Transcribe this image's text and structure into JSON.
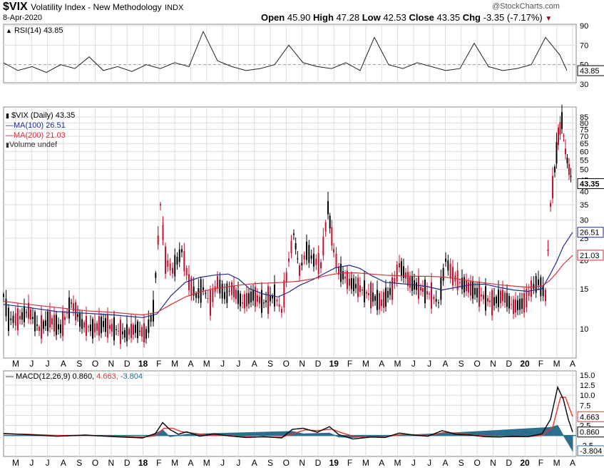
{
  "header": {
    "symbol": "$VIX",
    "name": "Volatility Index - New Methodology",
    "exchange": "INDX",
    "date": "8-Apr-2020",
    "watermark": "@StockCharts.com",
    "quote": {
      "open_label": "Open",
      "open": "45.90",
      "high_label": "High",
      "high": "47.28",
      "low_label": "Low",
      "low": "42.53",
      "close_label": "Close",
      "close": "43.35",
      "chg_label": "Chg",
      "chg": "-3.35 (-7.17%)"
    }
  },
  "legends": {
    "rsi": "RSI(14) 43.85",
    "price": "$VIX (Daily) 43.35",
    "ma100": "MA(100) 26.51",
    "ma200": "MA(200) 21.03",
    "volume": "Volume undef",
    "macd_prefix": "MACD(12,26,9) 0.860,",
    "macd_signal": " 4.663,",
    "macd_hist": " -3.804"
  },
  "colors": {
    "price": "#000000",
    "down": "#c8102e",
    "ma100": "#1e2b8c",
    "ma200": "#d62f3b",
    "macd_line": "#000000",
    "macd_signal": "#e8352c",
    "macd_hist": "#2a6f8e",
    "grid": "#dcdcdc",
    "accent": "#8b0a1e"
  },
  "chart_data": [
    {
      "type": "line",
      "panel": "RSI",
      "ylim": [
        30,
        90
      ],
      "y_ticks": [
        "90",
        "70",
        "50",
        "30"
      ],
      "last_value": "43.85",
      "x": [
        0,
        20,
        40,
        60,
        80,
        100,
        120,
        140,
        160,
        180,
        200,
        220,
        240,
        260,
        280,
        300,
        320,
        340,
        360,
        380,
        400,
        420,
        440,
        460,
        480,
        500,
        520,
        540,
        560,
        580,
        600,
        620,
        640,
        660,
        680,
        700,
        720,
        740,
        760,
        780,
        790
      ],
      "values": [
        52,
        44,
        48,
        42,
        50,
        46,
        58,
        44,
        48,
        43,
        50,
        46,
        52,
        48,
        84,
        54,
        48,
        44,
        46,
        50,
        70,
        52,
        48,
        46,
        52,
        44,
        78,
        50,
        46,
        52,
        48,
        44,
        46,
        72,
        48,
        44,
        46,
        50,
        78,
        60,
        44
      ]
    },
    {
      "type": "line",
      "panel": "Price",
      "scale": "log",
      "ylim": [
        8,
        85
      ],
      "y_ticks": [
        "85",
        "80",
        "75",
        "70",
        "65",
        "60",
        "55",
        "50",
        "45",
        "40",
        "35",
        "30",
        "25",
        "20",
        "15",
        "10"
      ],
      "x_labels": [
        "M",
        "J",
        "J",
        "A",
        "S",
        "O",
        "N",
        "D",
        "18",
        "F",
        "M",
        "A",
        "M",
        "J",
        "J",
        "A",
        "S",
        "O",
        "N",
        "D",
        "19",
        "F",
        "M",
        "A",
        "M",
        "J",
        "J",
        "A",
        "S",
        "O",
        "N",
        "D",
        "20",
        "F",
        "M",
        "A"
      ],
      "close_points": [
        [
          5,
          14
        ],
        [
          12,
          11
        ],
        [
          25,
          11
        ],
        [
          40,
          12
        ],
        [
          55,
          10
        ],
        [
          70,
          11
        ],
        [
          85,
          10
        ],
        [
          100,
          13
        ],
        [
          115,
          10.5
        ],
        [
          130,
          10
        ],
        [
          145,
          10.5
        ],
        [
          160,
          10
        ],
        [
          175,
          9.5
        ],
        [
          190,
          10
        ],
        [
          205,
          9.5
        ],
        [
          215,
          12
        ],
        [
          225,
          35
        ],
        [
          232,
          20
        ],
        [
          242,
          18
        ],
        [
          255,
          22
        ],
        [
          265,
          16
        ],
        [
          275,
          14
        ],
        [
          285,
          15
        ],
        [
          295,
          13
        ],
        [
          305,
          16
        ],
        [
          315,
          14
        ],
        [
          325,
          15
        ],
        [
          340,
          13
        ],
        [
          355,
          14
        ],
        [
          370,
          13
        ],
        [
          385,
          14
        ],
        [
          395,
          12
        ],
        [
          405,
          20
        ],
        [
          412,
          26
        ],
        [
          420,
          18
        ],
        [
          430,
          22
        ],
        [
          440,
          20
        ],
        [
          450,
          19
        ],
        [
          460,
          34
        ],
        [
          468,
          22
        ],
        [
          475,
          18
        ],
        [
          490,
          16
        ],
        [
          505,
          15
        ],
        [
          520,
          14
        ],
        [
          535,
          13
        ],
        [
          550,
          15
        ],
        [
          560,
          19
        ],
        [
          575,
          16
        ],
        [
          590,
          15
        ],
        [
          605,
          14
        ],
        [
          615,
          13
        ],
        [
          625,
          20
        ],
        [
          635,
          17
        ],
        [
          645,
          16
        ],
        [
          660,
          15
        ],
        [
          675,
          14
        ],
        [
          690,
          13
        ],
        [
          705,
          14
        ],
        [
          720,
          12.5
        ],
        [
          735,
          13
        ],
        [
          745,
          15
        ],
        [
          755,
          16
        ],
        [
          765,
          14
        ],
        [
          772,
          35
        ],
        [
          778,
          50
        ],
        [
          783,
          70
        ],
        [
          788,
          82
        ],
        [
          793,
          60
        ],
        [
          798,
          50
        ],
        [
          803,
          43.35
        ]
      ],
      "series": [
        {
          "name": "MA(100)",
          "last_value": "26.51",
          "points": [
            [
              5,
              12.8
            ],
            [
              40,
              12.4
            ],
            [
              80,
              11.9
            ],
            [
              120,
              11.7
            ],
            [
              160,
              11.5
            ],
            [
              200,
              11.2
            ],
            [
              220,
              11.6
            ],
            [
              240,
              14
            ],
            [
              260,
              16
            ],
            [
              280,
              16.8
            ],
            [
              300,
              17.2
            ],
            [
              320,
              17.4
            ],
            [
              335,
              16.5
            ],
            [
              350,
              15
            ],
            [
              370,
              14.2
            ],
            [
              390,
              13.8
            ],
            [
              405,
              14.5
            ],
            [
              420,
              15.5
            ],
            [
              440,
              16.5
            ],
            [
              455,
              17.5
            ],
            [
              470,
              18.5
            ],
            [
              490,
              19
            ],
            [
              505,
              18.4
            ],
            [
              520,
              17.2
            ],
            [
              540,
              16
            ],
            [
              560,
              15.8
            ],
            [
              580,
              15.6
            ],
            [
              600,
              15.3
            ],
            [
              620,
              14.8
            ],
            [
              640,
              15.2
            ],
            [
              660,
              15.6
            ],
            [
              680,
              15.7
            ],
            [
              700,
              15.2
            ],
            [
              720,
              14.8
            ],
            [
              740,
              14.6
            ],
            [
              760,
              15
            ],
            [
              770,
              17
            ],
            [
              780,
              19.5
            ],
            [
              790,
              23
            ],
            [
              803,
              26.51
            ]
          ]
        },
        {
          "name": "MA(200)",
          "last_value": "21.03",
          "points": [
            [
              5,
              13.2
            ],
            [
              40,
              12.8
            ],
            [
              80,
              12.4
            ],
            [
              120,
              12
            ],
            [
              160,
              11.8
            ],
            [
              200,
              11.5
            ],
            [
              220,
              11.8
            ],
            [
              240,
              12.8
            ],
            [
              260,
              13.8
            ],
            [
              280,
              14.5
            ],
            [
              300,
              15
            ],
            [
              320,
              15.3
            ],
            [
              340,
              15.6
            ],
            [
              360,
              15.8
            ],
            [
              380,
              15.9
            ],
            [
              400,
              16
            ],
            [
              420,
              16.2
            ],
            [
              440,
              16.6
            ],
            [
              460,
              17.2
            ],
            [
              480,
              17.6
            ],
            [
              500,
              17.6
            ],
            [
              520,
              17.4
            ],
            [
              540,
              17.2
            ],
            [
              560,
              17.1
            ],
            [
              580,
              17
            ],
            [
              600,
              17
            ],
            [
              620,
              16.9
            ],
            [
              640,
              16.6
            ],
            [
              660,
              16.2
            ],
            [
              680,
              15.9
            ],
            [
              700,
              15.6
            ],
            [
              720,
              15.4
            ],
            [
              740,
              15.2
            ],
            [
              760,
              15.4
            ],
            [
              770,
              16.2
            ],
            [
              780,
              17.5
            ],
            [
              790,
              19.2
            ],
            [
              803,
              21.03
            ]
          ]
        }
      ]
    },
    {
      "type": "line",
      "panel": "MACD",
      "ylim": [
        -3.8,
        15
      ],
      "y_ticks": [
        "15.0",
        "12.5",
        "10.0",
        "7.5",
        "5.0",
        "2.5",
        "-2.5"
      ],
      "x_labels": [
        "M",
        "J",
        "J",
        "A",
        "S",
        "O",
        "N",
        "D",
        "18",
        "F",
        "M",
        "A",
        "M",
        "J",
        "J",
        "A",
        "S",
        "O",
        "N",
        "D",
        "19",
        "F",
        "M",
        "A",
        "M",
        "J",
        "J",
        "A",
        "S",
        "O",
        "N",
        "D",
        "20",
        "F",
        "M",
        "A"
      ],
      "series": [
        {
          "name": "MACD",
          "last_value": "0.860",
          "points": [
            [
              5,
              0.5
            ],
            [
              40,
              0.2
            ],
            [
              80,
              -0.2
            ],
            [
              120,
              0.1
            ],
            [
              160,
              -0.3
            ],
            [
              200,
              -0.6
            ],
            [
              218,
              0.5
            ],
            [
              228,
              3.2
            ],
            [
              238,
              1.5
            ],
            [
              250,
              0.3
            ],
            [
              262,
              0.9
            ],
            [
              280,
              -0.2
            ],
            [
              300,
              0.4
            ],
            [
              320,
              -0.1
            ],
            [
              345,
              -0.5
            ],
            [
              370,
              -0.3
            ],
            [
              395,
              -0.6
            ],
            [
              410,
              1.5
            ],
            [
              425,
              1.8
            ],
            [
              445,
              0.8
            ],
            [
              462,
              2.2
            ],
            [
              475,
              0.2
            ],
            [
              495,
              -0.9
            ],
            [
              520,
              -0.4
            ],
            [
              540,
              -0.5
            ],
            [
              560,
              0.6
            ],
            [
              580,
              0.1
            ],
            [
              600,
              -0.2
            ],
            [
              620,
              1.2
            ],
            [
              640,
              0.3
            ],
            [
              660,
              0.1
            ],
            [
              680,
              -0.3
            ],
            [
              700,
              -0.4
            ],
            [
              720,
              -0.2
            ],
            [
              740,
              -0.3
            ],
            [
              760,
              0.4
            ],
            [
              772,
              4
            ],
            [
              782,
              12
            ],
            [
              790,
              9
            ],
            [
              797,
              4
            ],
            [
              803,
              0.86
            ]
          ]
        },
        {
          "name": "Signal",
          "last_value": "4.663",
          "points": [
            [
              5,
              0.4
            ],
            [
              40,
              0.3
            ],
            [
              80,
              0
            ],
            [
              120,
              0
            ],
            [
              160,
              -0.2
            ],
            [
              200,
              -0.4
            ],
            [
              218,
              -0.1
            ],
            [
              230,
              1.8
            ],
            [
              242,
              1.8
            ],
            [
              255,
              0.9
            ],
            [
              270,
              0.6
            ],
            [
              290,
              0.1
            ],
            [
              320,
              0
            ],
            [
              345,
              -0.3
            ],
            [
              370,
              -0.4
            ],
            [
              395,
              -0.4
            ],
            [
              412,
              0.5
            ],
            [
              428,
              1.4
            ],
            [
              445,
              1.2
            ],
            [
              465,
              1.6
            ],
            [
              480,
              0.6
            ],
            [
              500,
              -0.4
            ],
            [
              520,
              -0.4
            ],
            [
              540,
              -0.4
            ],
            [
              560,
              0.2
            ],
            [
              580,
              0.2
            ],
            [
              600,
              0
            ],
            [
              622,
              0.7
            ],
            [
              640,
              0.6
            ],
            [
              660,
              0.2
            ],
            [
              680,
              -0.1
            ],
            [
              700,
              -0.3
            ],
            [
              720,
              -0.3
            ],
            [
              740,
              -0.3
            ],
            [
              760,
              0
            ],
            [
              775,
              2
            ],
            [
              786,
              9.5
            ],
            [
              793,
              9.5
            ],
            [
              803,
              4.663
            ]
          ]
        },
        {
          "name": "Histogram",
          "last_value": "-3.804",
          "points": [
            [
              215,
              0.2
            ],
            [
              228,
              1.4
            ],
            [
              238,
              -0.3
            ],
            [
              262,
              0.3
            ],
            [
              410,
              1
            ],
            [
              425,
              0.4
            ],
            [
              462,
              0.6
            ],
            [
              475,
              -0.4
            ],
            [
              495,
              -0.5
            ],
            [
              620,
              0.5
            ],
            [
              772,
              2
            ],
            [
              782,
              2.5
            ],
            [
              790,
              0
            ],
            [
              797,
              -2
            ],
            [
              803,
              -3.804
            ]
          ]
        }
      ]
    }
  ]
}
